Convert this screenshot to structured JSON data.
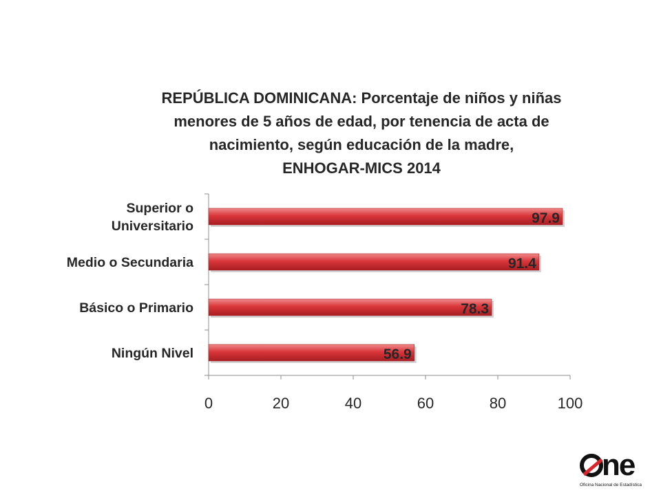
{
  "chart_data": {
    "type": "bar",
    "orientation": "horizontal",
    "title_lines": [
      "REPÚBLICA DOMINICANA: Porcentaje de niños y niñas",
      "menores de 5 años de edad, por tenencia de acta de",
      "nacimiento, según educación de la madre,",
      "ENHOGAR-MICS 2014"
    ],
    "categories": [
      [
        "Superior o",
        "Universitario"
      ],
      [
        "Medio o Secundaria"
      ],
      [
        "Básico o Primario"
      ],
      [
        "Ningún Nivel"
      ]
    ],
    "values": [
      97.9,
      91.4,
      78.3,
      56.9
    ],
    "value_labels": [
      "97.9",
      "91.4",
      "78.3",
      "56.9"
    ],
    "xlim": [
      0,
      100
    ],
    "x_ticks": [
      0,
      20,
      40,
      60,
      80,
      100
    ],
    "x_tick_labels": [
      "0",
      "20",
      "40",
      "60",
      "80",
      "100"
    ],
    "grid": false,
    "bar_color": "#d9363a",
    "bar_color_light": "#f08a8a",
    "bar_color_dark": "#a81d22"
  },
  "logo": {
    "text": "ne",
    "subtitle": "Oficina Nacional de Estadística"
  }
}
